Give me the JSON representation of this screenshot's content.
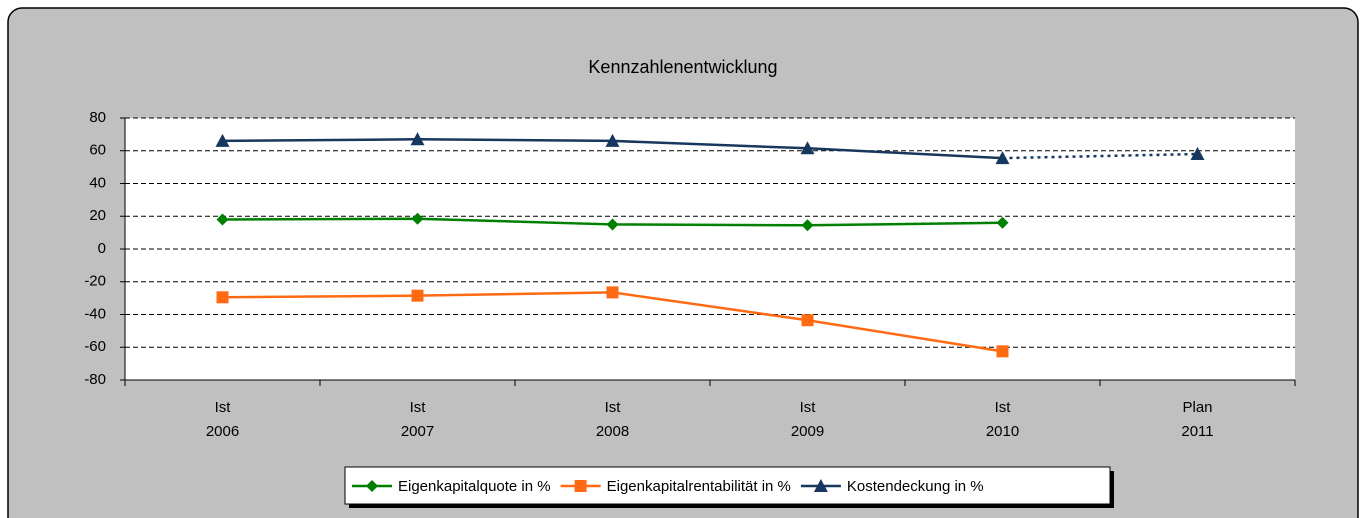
{
  "chart_data": {
    "type": "line",
    "title": "Kennzahlenentwicklung",
    "categories": [
      [
        "Ist",
        "2006"
      ],
      [
        "Ist",
        "2007"
      ],
      [
        "Ist",
        "2008"
      ],
      [
        "Ist",
        "2009"
      ],
      [
        "Ist",
        "2010"
      ],
      [
        "Plan",
        "2011"
      ]
    ],
    "series": [
      {
        "name": "Eigenkapitalquote in %",
        "color": "#008000",
        "marker": "diamond",
        "values": [
          18,
          18.5,
          15,
          14.5,
          16,
          null
        ]
      },
      {
        "name": "Eigenkapitalrentabilität in %",
        "color": "#ff6a13",
        "marker": "square",
        "values": [
          -29.5,
          -28.5,
          -26.5,
          -43.5,
          -62.5,
          null
        ]
      },
      {
        "name": "Kostendeckung in %",
        "color": "#17375e",
        "marker": "triangle",
        "values": [
          66,
          67,
          66,
          61.5,
          55.5,
          58
        ],
        "dotted_from": 4
      }
    ],
    "ylim": [
      -80,
      80
    ],
    "yticks": [
      -80,
      -60,
      -40,
      -20,
      0,
      20,
      40,
      60,
      80
    ],
    "grid": true,
    "legend": "bottom"
  }
}
